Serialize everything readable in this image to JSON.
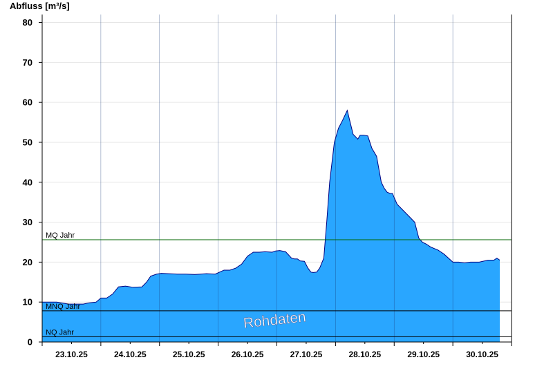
{
  "chart_data": {
    "type": "area",
    "title": "",
    "ylabel": "Abfluss [m³/s]",
    "xlabel": "",
    "ylim": [
      0,
      82
    ],
    "yticks": [
      0,
      10,
      20,
      30,
      40,
      50,
      60,
      70,
      80
    ],
    "x_unit": "days from 22.10.25 00:00",
    "xlim": [
      0,
      8
    ],
    "xtick_labels": [
      "23.10.25",
      "24.10.25",
      "25.10.25",
      "26.10.25",
      "27.10.25",
      "28.10.25",
      "29.10.25",
      "30.10.25"
    ],
    "grid": true,
    "fill_color": "#29a6ff",
    "line_color": "#000080",
    "series": [
      {
        "x": [
          0,
          0.12,
          0.25,
          0.45,
          0.7,
          0.8,
          0.92,
          1.0,
          1.1,
          1.2,
          1.3,
          1.42,
          1.55,
          1.7,
          1.78,
          1.85,
          1.95,
          2.03,
          2.15,
          2.3,
          2.45,
          2.6,
          2.7,
          2.8,
          2.95,
          3.1,
          3.2,
          3.3,
          3.4,
          3.5,
          3.6,
          3.7,
          3.8,
          3.92,
          3.98,
          4.05,
          4.15,
          4.25,
          4.3,
          4.35,
          4.4,
          4.47,
          4.53,
          4.58,
          4.62,
          4.68,
          4.73,
          4.8,
          4.85,
          4.9,
          4.98,
          5.05,
          5.12,
          5.2,
          5.25,
          5.3,
          5.38,
          5.42,
          5.48,
          5.55,
          5.62,
          5.7,
          5.78,
          5.83,
          5.88,
          5.93,
          5.97,
          6.05,
          6.15,
          6.25,
          6.35,
          6.42,
          6.48,
          6.55,
          6.62,
          6.75,
          6.85,
          7.0,
          7.1,
          7.2,
          7.3,
          7.45,
          7.6,
          7.7,
          7.75,
          7.8
        ],
        "y": [
          10,
          10,
          10,
          9.5,
          9.5,
          9.8,
          10,
          11,
          11,
          12,
          13.8,
          14,
          13.7,
          13.8,
          15,
          16.5,
          17,
          17.2,
          17.1,
          17,
          17,
          16.9,
          17,
          17.1,
          17,
          18,
          18,
          18.5,
          19.5,
          21.5,
          22.5,
          22.5,
          22.6,
          22.5,
          22.8,
          22.9,
          22.6,
          21,
          20.8,
          20.8,
          20.3,
          20.2,
          18.5,
          17.5,
          17.4,
          17.5,
          18.5,
          21,
          30,
          40,
          50,
          53.5,
          55.5,
          58,
          55,
          52,
          50.8,
          51.8,
          51.8,
          51.6,
          48.5,
          46.5,
          40,
          38.5,
          37.5,
          37.2,
          37.2,
          34.5,
          33,
          31.5,
          30,
          26,
          25,
          24.5,
          23.8,
          23,
          22,
          20,
          20,
          19.8,
          20,
          20,
          20.5,
          20.5,
          21,
          20.5
        ]
      }
    ],
    "reference_lines": [
      {
        "label": "MQ Jahr",
        "value": 25.6,
        "color": "#006600"
      },
      {
        "label": "MNQ Jahr",
        "value": 7.8,
        "color": "#000000"
      },
      {
        "label": "NQ Jahr",
        "value": 1.3,
        "color": "#000000"
      }
    ],
    "annotations": [
      {
        "text": "Rohdaten"
      }
    ]
  }
}
